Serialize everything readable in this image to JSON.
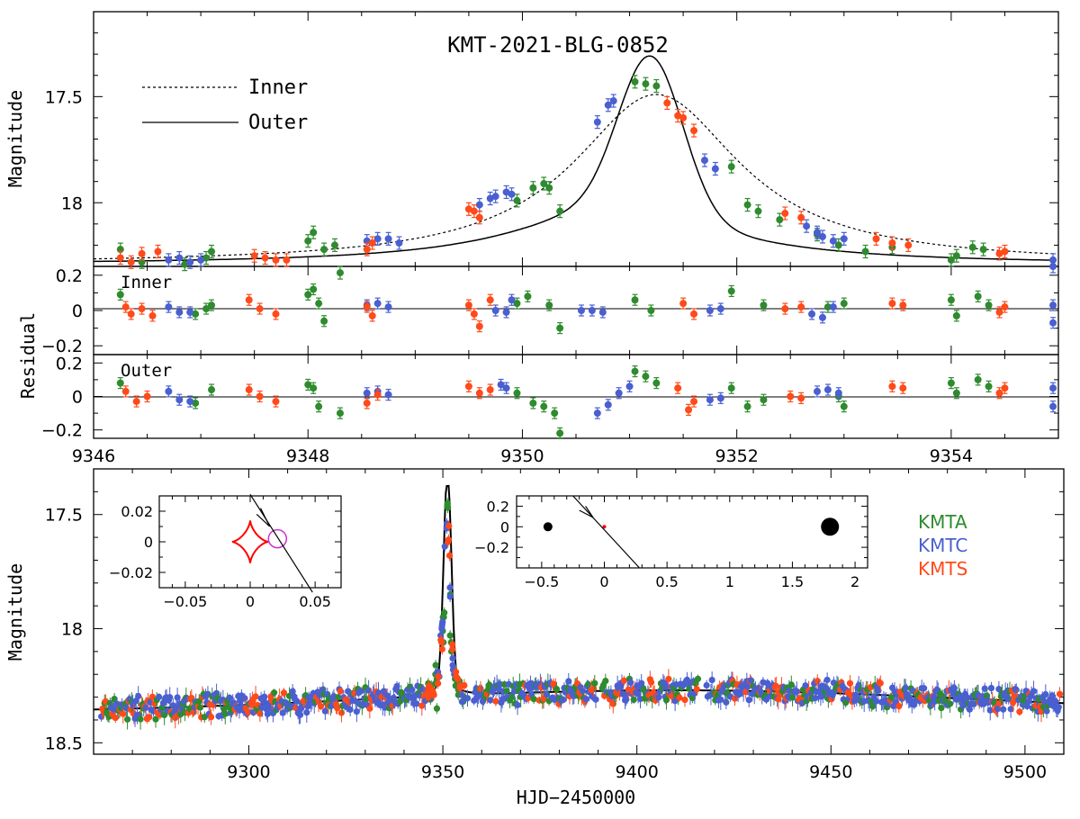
{
  "title": "KMT-2021-BLG-0852",
  "colors": {
    "KMTA": "#2e8b2e",
    "KMTC": "#4a5fd0",
    "KMTS": "#ff4a1a",
    "caustic": "#ff0000",
    "source": "#cc33cc",
    "model": "#000000"
  },
  "legend_models": [
    {
      "label": "Inner",
      "style": "dotted"
    },
    {
      "label": "Outer",
      "style": "solid"
    }
  ],
  "legend_sites": [
    "KMTA",
    "KMTC",
    "KMTS"
  ],
  "labels": {
    "y_magnitude": "Magnitude",
    "y_residual": "Residual",
    "inner": "Inner",
    "outer": "Outer",
    "x_bottom": "HJD−2450000"
  },
  "chart_data": [
    {
      "type": "scatter",
      "panel": "zoom-light-curve",
      "title": "KMT-2021-BLG-0852",
      "ylabel": "Magnitude",
      "xlim": [
        9346,
        9355
      ],
      "ylim": [
        18.3,
        17.1
      ],
      "yticks": [
        "17.5",
        "18"
      ],
      "series": [
        {
          "name": "KMTA",
          "points": [
            [
              9346.25,
              18.22
            ],
            [
              9346.45,
              18.28
            ],
            [
              9346.85,
              18.29
            ],
            [
              9347.05,
              18.26
            ],
            [
              9347.1,
              18.23
            ],
            [
              9348.0,
              18.18
            ],
            [
              9348.05,
              18.14
            ],
            [
              9348.15,
              18.22
            ],
            [
              9348.25,
              18.2
            ],
            [
              9348.3,
              18.33
            ],
            [
              9349.95,
              17.99
            ],
            [
              9350.1,
              17.93
            ],
            [
              9350.2,
              17.91
            ],
            [
              9350.25,
              17.93
            ],
            [
              9350.35,
              18.04
            ],
            [
              9351.05,
              17.43
            ],
            [
              9351.15,
              17.44
            ],
            [
              9351.25,
              17.45
            ],
            [
              9351.95,
              17.83
            ],
            [
              9352.1,
              18.01
            ],
            [
              9352.2,
              18.04
            ],
            [
              9352.4,
              18.08
            ],
            [
              9352.75,
              18.15
            ],
            [
              9352.95,
              18.2
            ],
            [
              9353.2,
              18.23
            ],
            [
              9353.45,
              18.21
            ],
            [
              9354.0,
              18.27
            ],
            [
              9354.05,
              18.25
            ],
            [
              9354.2,
              18.21
            ],
            [
              9354.3,
              18.22
            ]
          ]
        },
        {
          "name": "KMTC",
          "points": [
            [
              9346.7,
              18.27
            ],
            [
              9346.8,
              18.26
            ],
            [
              9346.9,
              18.28
            ],
            [
              9347.0,
              18.27
            ],
            [
              9348.55,
              18.18
            ],
            [
              9348.65,
              18.17
            ],
            [
              9348.75,
              18.17
            ],
            [
              9348.85,
              18.19
            ],
            [
              9349.6,
              18.01
            ],
            [
              9349.7,
              17.98
            ],
            [
              9349.75,
              17.97
            ],
            [
              9349.85,
              17.95
            ],
            [
              9349.9,
              17.96
            ],
            [
              9350.7,
              17.62
            ],
            [
              9350.8,
              17.54
            ],
            [
              9350.85,
              17.52
            ],
            [
              9351.7,
              17.8
            ],
            [
              9351.8,
              17.84
            ],
            [
              9352.65,
              18.11
            ],
            [
              9352.75,
              18.14
            ],
            [
              9352.8,
              18.16
            ],
            [
              9352.9,
              18.18
            ],
            [
              9353.0,
              18.17
            ],
            [
              9354.95,
              18.27
            ],
            [
              9354.95,
              18.3
            ]
          ]
        },
        {
          "name": "KMTS",
          "points": [
            [
              9346.25,
              18.26
            ],
            [
              9346.35,
              18.28
            ],
            [
              9346.45,
              18.24
            ],
            [
              9346.6,
              18.23
            ],
            [
              9347.5,
              18.25
            ],
            [
              9347.6,
              18.26
            ],
            [
              9347.7,
              18.27
            ],
            [
              9347.8,
              18.27
            ],
            [
              9348.55,
              18.22
            ],
            [
              9348.6,
              18.19
            ],
            [
              9349.5,
              18.03
            ],
            [
              9349.55,
              18.04
            ],
            [
              9349.6,
              18.07
            ],
            [
              9351.35,
              17.53
            ],
            [
              9351.45,
              17.59
            ],
            [
              9351.5,
              17.6
            ],
            [
              9351.6,
              17.66
            ],
            [
              9352.45,
              18.05
            ],
            [
              9352.6,
              18.07
            ],
            [
              9353.3,
              18.17
            ],
            [
              9353.45,
              18.19
            ],
            [
              9353.6,
              18.2
            ],
            [
              9354.45,
              18.24
            ],
            [
              9354.5,
              18.23
            ]
          ]
        }
      ]
    },
    {
      "type": "scatter",
      "panel": "residual-inner",
      "ylabel": "Residual",
      "label": "Inner",
      "xlim": [
        9346,
        9355
      ],
      "ylim": [
        -0.25,
        0.25
      ],
      "yticks": [
        "0.2",
        "0",
        "−0.2"
      ],
      "series": [
        {
          "name": "KMTA",
          "points": [
            [
              9346.25,
              0.09
            ],
            [
              9346.95,
              -0.02
            ],
            [
              9347.05,
              0.01
            ],
            [
              9347.1,
              0.03
            ],
            [
              9348.0,
              0.09
            ],
            [
              9348.05,
              0.12
            ],
            [
              9348.1,
              0.04
            ],
            [
              9348.15,
              -0.06
            ],
            [
              9349.95,
              0.04
            ],
            [
              9350.05,
              0.08
            ],
            [
              9350.25,
              0.03
            ],
            [
              9350.35,
              -0.1
            ],
            [
              9351.05,
              0.06
            ],
            [
              9351.2,
              0.0
            ],
            [
              9351.95,
              0.11
            ],
            [
              9352.25,
              0.03
            ],
            [
              9352.85,
              0.02
            ],
            [
              9353.0,
              0.04
            ],
            [
              9354.0,
              0.06
            ],
            [
              9354.05,
              -0.03
            ],
            [
              9354.25,
              0.08
            ],
            [
              9354.35,
              0.03
            ]
          ]
        },
        {
          "name": "KMTC",
          "points": [
            [
              9346.7,
              0.02
            ],
            [
              9346.8,
              -0.01
            ],
            [
              9346.9,
              -0.01
            ],
            [
              9348.55,
              0.03
            ],
            [
              9348.65,
              0.04
            ],
            [
              9348.75,
              0.02
            ],
            [
              9349.75,
              0.0
            ],
            [
              9349.85,
              -0.01
            ],
            [
              9349.9,
              0.06
            ],
            [
              9350.55,
              0.0
            ],
            [
              9350.65,
              0.0
            ],
            [
              9350.75,
              -0.01
            ],
            [
              9351.75,
              0.0
            ],
            [
              9351.85,
              0.01
            ],
            [
              9352.7,
              -0.02
            ],
            [
              9352.8,
              -0.04
            ],
            [
              9352.9,
              0.02
            ],
            [
              9354.95,
              0.03
            ],
            [
              9354.95,
              -0.07
            ]
          ]
        },
        {
          "name": "KMTS",
          "points": [
            [
              9346.3,
              0.02
            ],
            [
              9346.35,
              -0.02
            ],
            [
              9346.45,
              0.01
            ],
            [
              9346.55,
              -0.03
            ],
            [
              9347.45,
              0.06
            ],
            [
              9347.55,
              0.01
            ],
            [
              9347.7,
              -0.02
            ],
            [
              9348.55,
              0.02
            ],
            [
              9348.6,
              -0.03
            ],
            [
              9349.5,
              0.03
            ],
            [
              9349.55,
              -0.02
            ],
            [
              9349.6,
              -0.09
            ],
            [
              9349.7,
              0.06
            ],
            [
              9351.5,
              0.04
            ],
            [
              9351.6,
              -0.02
            ],
            [
              9352.45,
              0.01
            ],
            [
              9352.6,
              0.02
            ],
            [
              9353.45,
              0.04
            ],
            [
              9353.55,
              0.03
            ],
            [
              9354.45,
              -0.01
            ],
            [
              9354.5,
              0.02
            ]
          ]
        }
      ]
    },
    {
      "type": "scatter",
      "panel": "residual-outer",
      "label": "Outer",
      "xlabel": "",
      "xlim": [
        9346,
        9355
      ],
      "xticks": [
        "9346",
        "9348",
        "9350",
        "9352",
        "9354"
      ],
      "ylim": [
        -0.25,
        0.25
      ],
      "yticks": [
        "0.2",
        "0",
        "−0.2"
      ],
      "series": [
        {
          "name": "KMTA",
          "points": [
            [
              9346.25,
              0.08
            ],
            [
              9346.95,
              -0.04
            ],
            [
              9347.1,
              0.04
            ],
            [
              9348.0,
              0.07
            ],
            [
              9348.05,
              0.05
            ],
            [
              9348.1,
              -0.06
            ],
            [
              9348.3,
              -0.1
            ],
            [
              9349.95,
              0.02
            ],
            [
              9350.1,
              -0.04
            ],
            [
              9350.2,
              -0.06
            ],
            [
              9350.3,
              -0.1
            ],
            [
              9350.35,
              -0.22
            ],
            [
              9351.05,
              0.15
            ],
            [
              9351.15,
              0.12
            ],
            [
              9351.25,
              0.08
            ],
            [
              9351.95,
              0.05
            ],
            [
              9352.1,
              -0.06
            ],
            [
              9352.25,
              -0.02
            ],
            [
              9352.95,
              0.0
            ],
            [
              9353.0,
              -0.06
            ],
            [
              9354.0,
              0.08
            ],
            [
              9354.05,
              0.02
            ],
            [
              9354.25,
              0.1
            ],
            [
              9354.35,
              0.06
            ]
          ]
        },
        {
          "name": "KMTC",
          "points": [
            [
              9346.7,
              0.03
            ],
            [
              9346.8,
              -0.02
            ],
            [
              9346.9,
              -0.03
            ],
            [
              9348.55,
              0.02
            ],
            [
              9348.65,
              0.03
            ],
            [
              9348.75,
              0.01
            ],
            [
              9349.8,
              0.07
            ],
            [
              9349.85,
              0.05
            ],
            [
              9350.7,
              -0.1
            ],
            [
              9350.8,
              -0.05
            ],
            [
              9350.9,
              0.02
            ],
            [
              9351.0,
              0.06
            ],
            [
              9351.75,
              -0.02
            ],
            [
              9351.85,
              -0.01
            ],
            [
              9352.75,
              0.03
            ],
            [
              9352.85,
              0.04
            ],
            [
              9352.95,
              0.02
            ],
            [
              9354.95,
              0.05
            ],
            [
              9354.95,
              -0.06
            ]
          ]
        },
        {
          "name": "KMTS",
          "points": [
            [
              9346.3,
              0.03
            ],
            [
              9346.4,
              -0.03
            ],
            [
              9346.5,
              0.0
            ],
            [
              9347.45,
              0.04
            ],
            [
              9347.55,
              0.0
            ],
            [
              9347.7,
              -0.03
            ],
            [
              9348.55,
              -0.04
            ],
            [
              9348.65,
              0.01
            ],
            [
              9349.5,
              0.06
            ],
            [
              9349.6,
              0.02
            ],
            [
              9349.7,
              0.04
            ],
            [
              9351.45,
              0.05
            ],
            [
              9351.55,
              -0.08
            ],
            [
              9351.6,
              -0.03
            ],
            [
              9352.5,
              0.0
            ],
            [
              9352.6,
              -0.01
            ],
            [
              9353.45,
              0.06
            ],
            [
              9353.55,
              0.05
            ],
            [
              9354.45,
              0.02
            ],
            [
              9354.5,
              0.05
            ]
          ]
        }
      ]
    },
    {
      "type": "scatter",
      "panel": "full-light-curve",
      "ylabel": "Magnitude",
      "xlabel": "HJD−2450000",
      "xlim": [
        9260,
        9510
      ],
      "xticks": [
        "9300",
        "9350",
        "9400",
        "9450",
        "9500"
      ],
      "ylim": [
        18.55,
        17.3
      ],
      "yticks": [
        "17.5",
        "18",
        "18.5"
      ],
      "baseline_mag": 18.37,
      "peak_mag": 17.45,
      "t0": 9351.2
    },
    {
      "type": "line",
      "panel": "caustic-inset-inner",
      "xlim": [
        -0.07,
        0.07
      ],
      "ylim": [
        -0.03,
        0.03
      ],
      "xticks": [
        "−0.05",
        "0",
        "0.05"
      ],
      "yticks": [
        "0.02",
        "0",
        "−0.02"
      ]
    },
    {
      "type": "line",
      "panel": "caustic-inset-outer",
      "xlim": [
        -0.7,
        2.1
      ],
      "ylim": [
        -0.4,
        0.3
      ],
      "xticks": [
        "−0.5",
        "0",
        "0.5",
        "1",
        "1.5",
        "2"
      ],
      "yticks": [
        "0.2",
        "0",
        "−0.2"
      ]
    }
  ]
}
